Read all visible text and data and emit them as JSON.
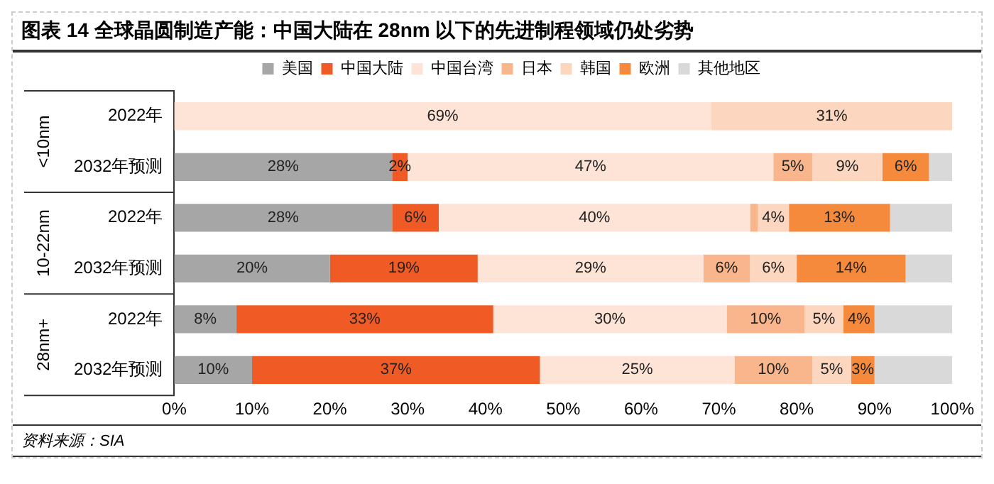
{
  "chart_data": {
    "type": "bar",
    "orientation": "horizontal",
    "stacked": true,
    "title": "图表 14  全球晶圆制造产能：中国大陆在 28nm 以下的先进制程领域仍处劣势",
    "categories": [
      "2022年",
      "2032年预测",
      "2022年",
      "2032年预测",
      "2022年",
      "2032年预测"
    ],
    "series": [
      {
        "name": "美国",
        "color": "#a6a6a6",
        "values": [
          0,
          28,
          28,
          20,
          8,
          10
        ],
        "value_labels": [
          null,
          "28%",
          "28%",
          "20%",
          "8%",
          "10%"
        ]
      },
      {
        "name": "中国大陆",
        "color": "#f05a24",
        "values": [
          0,
          2,
          6,
          19,
          33,
          37
        ],
        "value_labels": [
          null,
          "2%",
          "6%",
          "19%",
          "33%",
          "37%"
        ]
      },
      {
        "name": "中国台湾",
        "color": "#fde4d6",
        "values": [
          69,
          47,
          40,
          29,
          30,
          25
        ],
        "value_labels": [
          "69%",
          "47%",
          "40%",
          "29%",
          "30%",
          "25%"
        ]
      },
      {
        "name": "日本",
        "color": "#f9b68c",
        "values": [
          0,
          5,
          1,
          6,
          10,
          10
        ],
        "value_labels": [
          null,
          "5%",
          null,
          "6%",
          "10%",
          "10%"
        ]
      },
      {
        "name": "韩国",
        "color": "#fcd6bf",
        "values": [
          31,
          9,
          4,
          6,
          5,
          5
        ],
        "value_labels": [
          "31%",
          "9%",
          "4%",
          "6%",
          "5%",
          "5%"
        ]
      },
      {
        "name": "欧洲",
        "color": "#f68a3c",
        "values": [
          0,
          6,
          13,
          14,
          4,
          3
        ],
        "value_labels": [
          null,
          "6%",
          "13%",
          "14%",
          "4%",
          "3%"
        ]
      },
      {
        "name": "其他地区",
        "color": "#d9d9d9",
        "values": [
          0,
          3,
          8,
          6,
          10,
          10
        ],
        "value_labels": [
          null,
          null,
          null,
          null,
          null,
          null
        ]
      }
    ],
    "xlim": [
      0,
      100
    ],
    "xticks": [
      {
        "value": 0,
        "label": "0%"
      },
      {
        "value": 10,
        "label": "10%"
      },
      {
        "value": 20,
        "label": "20%"
      },
      {
        "value": 30,
        "label": "30%"
      },
      {
        "value": 40,
        "label": "40%"
      },
      {
        "value": 50,
        "label": "50%"
      },
      {
        "value": 60,
        "label": "60%"
      },
      {
        "value": 70,
        "label": "70%"
      },
      {
        "value": 80,
        "label": "80%"
      },
      {
        "value": 90,
        "label": "90%"
      },
      {
        "value": 100,
        "label": "100%"
      }
    ],
    "grid": false,
    "legend": "top",
    "annotations": [
      "<10nm",
      "10-22nm",
      "28nm+",
      "资料来源：SIA"
    ]
  }
}
